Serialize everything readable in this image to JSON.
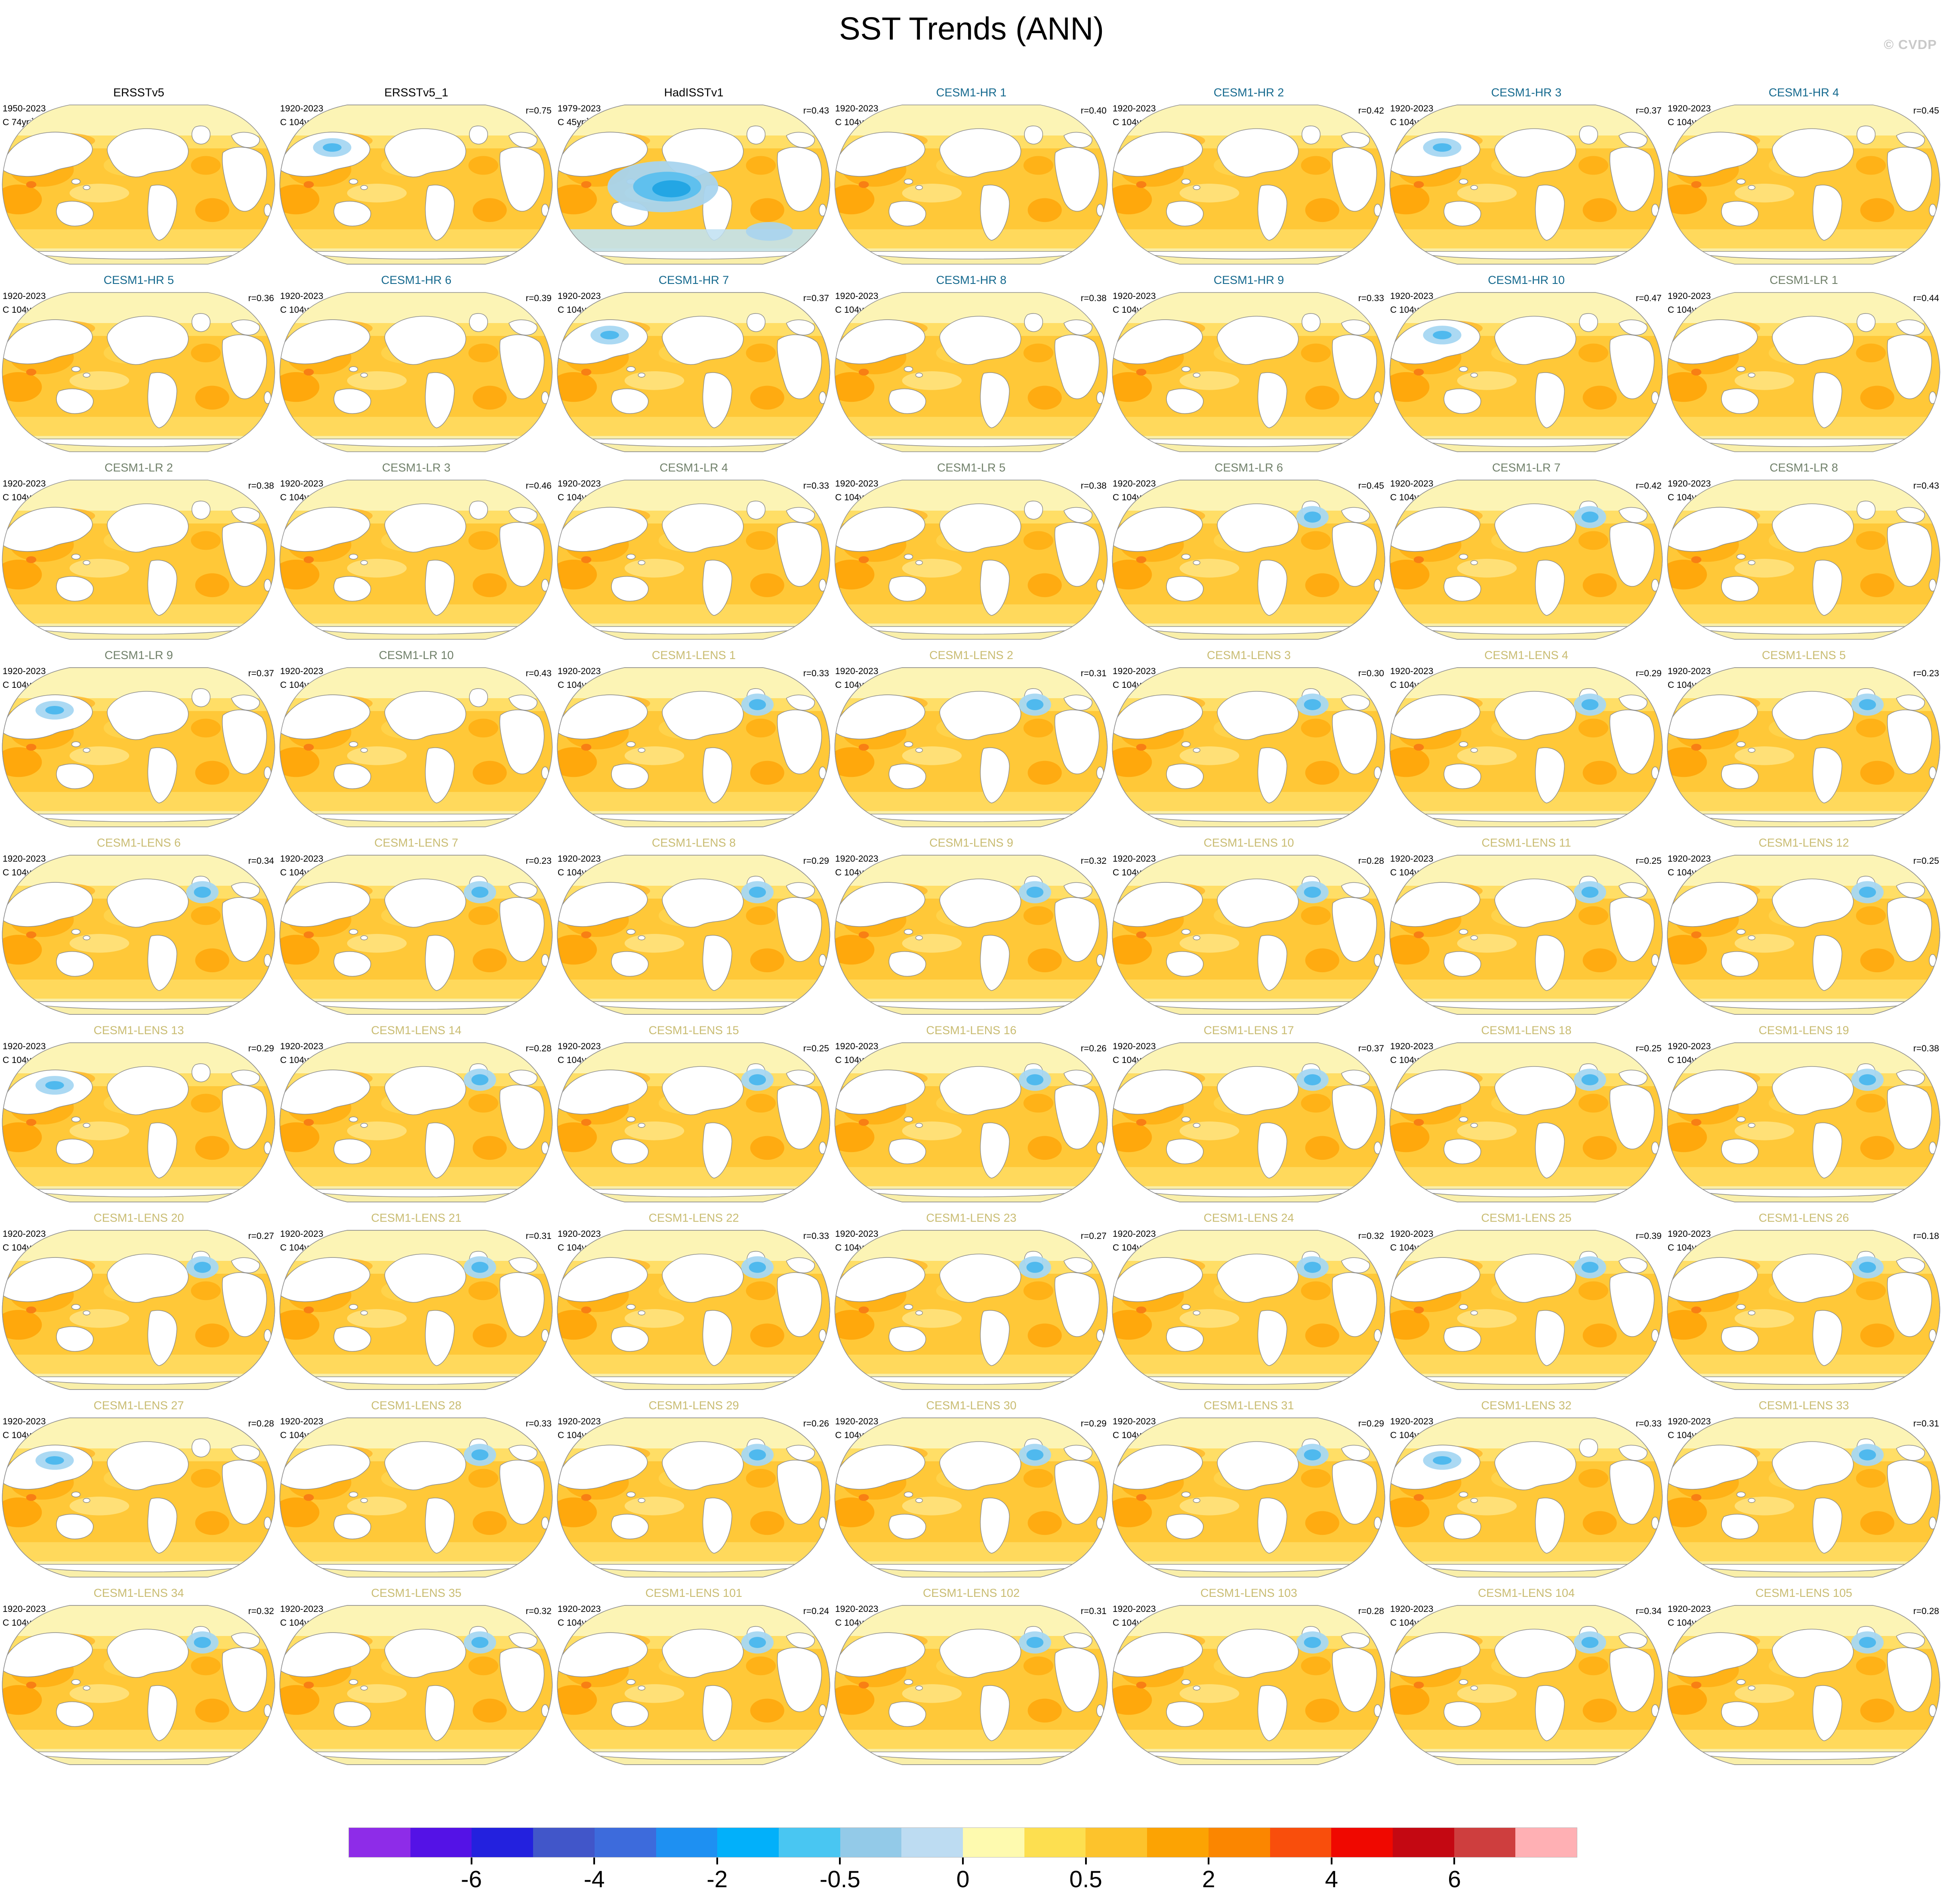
{
  "title": "SST Trends (ANN)",
  "watermark": "© CVDP",
  "chart_data": {
    "type": "heatmap",
    "description": "Grid of 63 global SST linear-trend maps (annual), observations and CESM1 ensemble members, with pattern correlation r vs observations",
    "title": "SST Trends (ANN)",
    "rows": 9,
    "cols": 7,
    "title_colors": {
      "obs": "#000000",
      "hr": "#15698E",
      "lr": "#70806A",
      "lens": "#C9BC72"
    },
    "panels": [
      {
        "title": "ERSSTv5",
        "group": "obs",
        "period": "1950-2023",
        "units": "C 74yr",
        "units_exp": "-1",
        "r_label": null,
        "map": "warm"
      },
      {
        "title": "ERSSTv5_1",
        "group": "obs",
        "period": "1920-2023",
        "units": "C 104yr",
        "units_exp": "-1",
        "r_label": "r=0.75",
        "map": "npac"
      },
      {
        "title": "HadISSTv1",
        "group": "obs",
        "period": "1979-2023",
        "units": "C 45yr",
        "units_exp": "-1",
        "r_label": "r=0.43",
        "map": "pac"
      },
      {
        "title": "CESM1-HR 1",
        "group": "hr",
        "period": "1920-2023",
        "units": "C 104yr",
        "units_exp": "-1",
        "r_label": "r=0.40",
        "map": "warm"
      },
      {
        "title": "CESM1-HR 2",
        "group": "hr",
        "period": "1920-2023",
        "units": "C 104yr",
        "units_exp": "-1",
        "r_label": "r=0.42",
        "map": "warm"
      },
      {
        "title": "CESM1-HR 3",
        "group": "hr",
        "period": "1920-2023",
        "units": "C 104yr",
        "units_exp": "-1",
        "r_label": "r=0.37",
        "map": "npac"
      },
      {
        "title": "CESM1-HR 4",
        "group": "hr",
        "period": "1920-2023",
        "units": "C 104yr",
        "units_exp": "-1",
        "r_label": "r=0.45",
        "map": "warm"
      },
      {
        "title": "CESM1-HR 5",
        "group": "hr",
        "period": "1920-2023",
        "units": "C 104yr",
        "units_exp": "-1",
        "r_label": "r=0.36",
        "map": "warm"
      },
      {
        "title": "CESM1-HR 6",
        "group": "hr",
        "period": "1920-2023",
        "units": "C 104yr",
        "units_exp": "-1",
        "r_label": "r=0.39",
        "map": "warm"
      },
      {
        "title": "CESM1-HR 7",
        "group": "hr",
        "period": "1920-2023",
        "units": "C 104yr",
        "units_exp": "-1",
        "r_label": "r=0.37",
        "map": "npac"
      },
      {
        "title": "CESM1-HR 8",
        "group": "hr",
        "period": "1920-2023",
        "units": "C 104yr",
        "units_exp": "-1",
        "r_label": "r=0.38",
        "map": "warm"
      },
      {
        "title": "CESM1-HR 9",
        "group": "hr",
        "period": "1920-2023",
        "units": "C 104yr",
        "units_exp": "-1",
        "r_label": "r=0.33",
        "map": "warm"
      },
      {
        "title": "CESM1-HR 10",
        "group": "hr",
        "period": "1920-2023",
        "units": "C 104yr",
        "units_exp": "-1",
        "r_label": "r=0.47",
        "map": "npac"
      },
      {
        "title": "CESM1-LR 1",
        "group": "lr",
        "period": "1920-2023",
        "units": "C 104yr",
        "units_exp": "-1",
        "r_label": "r=0.44",
        "map": "warm"
      },
      {
        "title": "CESM1-LR 2",
        "group": "lr",
        "period": "1920-2023",
        "units": "C 104yr",
        "units_exp": "-1",
        "r_label": "r=0.38",
        "map": "warm"
      },
      {
        "title": "CESM1-LR 3",
        "group": "lr",
        "period": "1920-2023",
        "units": "C 104yr",
        "units_exp": "-1",
        "r_label": "r=0.46",
        "map": "warm"
      },
      {
        "title": "CESM1-LR 4",
        "group": "lr",
        "period": "1920-2023",
        "units": "C 104yr",
        "units_exp": "-1",
        "r_label": "r=0.33",
        "map": "warm"
      },
      {
        "title": "CESM1-LR 5",
        "group": "lr",
        "period": "1920-2023",
        "units": "C 104yr",
        "units_exp": "-1",
        "r_label": "r=0.38",
        "map": "warm"
      },
      {
        "title": "CESM1-LR 6",
        "group": "lr",
        "period": "1920-2023",
        "units": "C 104yr",
        "units_exp": "-1",
        "r_label": "r=0.45",
        "map": "atl"
      },
      {
        "title": "CESM1-LR 7",
        "group": "lr",
        "period": "1920-2023",
        "units": "C 104yr",
        "units_exp": "-1",
        "r_label": "r=0.42",
        "map": "atl"
      },
      {
        "title": "CESM1-LR 8",
        "group": "lr",
        "period": "1920-2023",
        "units": "C 104yr",
        "units_exp": "-1",
        "r_label": "r=0.43",
        "map": "warm"
      },
      {
        "title": "CESM1-LR 9",
        "group": "lr",
        "period": "1920-2023",
        "units": "C 104yr",
        "units_exp": "-1",
        "r_label": "r=0.37",
        "map": "npac"
      },
      {
        "title": "CESM1-LR 10",
        "group": "lr",
        "period": "1920-2023",
        "units": "C 104yr",
        "units_exp": "-1",
        "r_label": "r=0.43",
        "map": "warm"
      },
      {
        "title": "CESM1-LENS 1",
        "group": "lens",
        "period": "1920-2023",
        "units": "C 104yr",
        "units_exp": "-1",
        "r_label": "r=0.33",
        "map": "atl"
      },
      {
        "title": "CESM1-LENS 2",
        "group": "lens",
        "period": "1920-2023",
        "units": "C 104yr",
        "units_exp": "-1",
        "r_label": "r=0.31",
        "map": "atl"
      },
      {
        "title": "CESM1-LENS 3",
        "group": "lens",
        "period": "1920-2023",
        "units": "C 104yr",
        "units_exp": "-1",
        "r_label": "r=0.30",
        "map": "atl"
      },
      {
        "title": "CESM1-LENS 4",
        "group": "lens",
        "period": "1920-2023",
        "units": "C 104yr",
        "units_exp": "-1",
        "r_label": "r=0.29",
        "map": "atl"
      },
      {
        "title": "CESM1-LENS 5",
        "group": "lens",
        "period": "1920-2023",
        "units": "C 104yr",
        "units_exp": "-1",
        "r_label": "r=0.23",
        "map": "atl"
      },
      {
        "title": "CESM1-LENS 6",
        "group": "lens",
        "period": "1920-2023",
        "units": "C 104yr",
        "units_exp": "-1",
        "r_label": "r=0.34",
        "map": "atl"
      },
      {
        "title": "CESM1-LENS 7",
        "group": "lens",
        "period": "1920-2023",
        "units": "C 104yr",
        "units_exp": "-1",
        "r_label": "r=0.23",
        "map": "atl"
      },
      {
        "title": "CESM1-LENS 8",
        "group": "lens",
        "period": "1920-2023",
        "units": "C 104yr",
        "units_exp": "-1",
        "r_label": "r=0.29",
        "map": "atl"
      },
      {
        "title": "CESM1-LENS 9",
        "group": "lens",
        "period": "1920-2023",
        "units": "C 104yr",
        "units_exp": "-1",
        "r_label": "r=0.32",
        "map": "atl"
      },
      {
        "title": "CESM1-LENS 10",
        "group": "lens",
        "period": "1920-2023",
        "units": "C 104yr",
        "units_exp": "-1",
        "r_label": "r=0.28",
        "map": "atl"
      },
      {
        "title": "CESM1-LENS 11",
        "group": "lens",
        "period": "1920-2023",
        "units": "C 104yr",
        "units_exp": "-1",
        "r_label": "r=0.25",
        "map": "atl"
      },
      {
        "title": "CESM1-LENS 12",
        "group": "lens",
        "period": "1920-2023",
        "units": "C 104yr",
        "units_exp": "-1",
        "r_label": "r=0.25",
        "map": "atl"
      },
      {
        "title": "CESM1-LENS 13",
        "group": "lens",
        "period": "1920-2023",
        "units": "C 104yr",
        "units_exp": "-1",
        "r_label": "r=0.29",
        "map": "npac"
      },
      {
        "title": "CESM1-LENS 14",
        "group": "lens",
        "period": "1920-2023",
        "units": "C 104yr",
        "units_exp": "-1",
        "r_label": "r=0.28",
        "map": "atl"
      },
      {
        "title": "CESM1-LENS 15",
        "group": "lens",
        "period": "1920-2023",
        "units": "C 104yr",
        "units_exp": "-1",
        "r_label": "r=0.25",
        "map": "atl"
      },
      {
        "title": "CESM1-LENS 16",
        "group": "lens",
        "period": "1920-2023",
        "units": "C 104yr",
        "units_exp": "-1",
        "r_label": "r=0.26",
        "map": "atl"
      },
      {
        "title": "CESM1-LENS 17",
        "group": "lens",
        "period": "1920-2023",
        "units": "C 104yr",
        "units_exp": "-1",
        "r_label": "r=0.37",
        "map": "atl"
      },
      {
        "title": "CESM1-LENS 18",
        "group": "lens",
        "period": "1920-2023",
        "units": "C 104yr",
        "units_exp": "-1",
        "r_label": "r=0.25",
        "map": "atl"
      },
      {
        "title": "CESM1-LENS 19",
        "group": "lens",
        "period": "1920-2023",
        "units": "C 104yr",
        "units_exp": "-1",
        "r_label": "r=0.38",
        "map": "atl"
      },
      {
        "title": "CESM1-LENS 20",
        "group": "lens",
        "period": "1920-2023",
        "units": "C 104yr",
        "units_exp": "-1",
        "r_label": "r=0.27",
        "map": "atl"
      },
      {
        "title": "CESM1-LENS 21",
        "group": "lens",
        "period": "1920-2023",
        "units": "C 104yr",
        "units_exp": "-1",
        "r_label": "r=0.31",
        "map": "atl"
      },
      {
        "title": "CESM1-LENS 22",
        "group": "lens",
        "period": "1920-2023",
        "units": "C 104yr",
        "units_exp": "-1",
        "r_label": "r=0.33",
        "map": "atl"
      },
      {
        "title": "CESM1-LENS 23",
        "group": "lens",
        "period": "1920-2023",
        "units": "C 104yr",
        "units_exp": "-1",
        "r_label": "r=0.27",
        "map": "atl"
      },
      {
        "title": "CESM1-LENS 24",
        "group": "lens",
        "period": "1920-2023",
        "units": "C 104yr",
        "units_exp": "-1",
        "r_label": "r=0.32",
        "map": "atl"
      },
      {
        "title": "CESM1-LENS 25",
        "group": "lens",
        "period": "1920-2023",
        "units": "C 104yr",
        "units_exp": "-1",
        "r_label": "r=0.39",
        "map": "atl"
      },
      {
        "title": "CESM1-LENS 26",
        "group": "lens",
        "period": "1920-2023",
        "units": "C 104yr",
        "units_exp": "-1",
        "r_label": "r=0.18",
        "map": "atl"
      },
      {
        "title": "CESM1-LENS 27",
        "group": "lens",
        "period": "1920-2023",
        "units": "C 104yr",
        "units_exp": "-1",
        "r_label": "r=0.28",
        "map": "npac"
      },
      {
        "title": "CESM1-LENS 28",
        "group": "lens",
        "period": "1920-2023",
        "units": "C 104yr",
        "units_exp": "-1",
        "r_label": "r=0.33",
        "map": "atl"
      },
      {
        "title": "CESM1-LENS 29",
        "group": "lens",
        "period": "1920-2023",
        "units": "C 104yr",
        "units_exp": "-1",
        "r_label": "r=0.26",
        "map": "atl"
      },
      {
        "title": "CESM1-LENS 30",
        "group": "lens",
        "period": "1920-2023",
        "units": "C 104yr",
        "units_exp": "-1",
        "r_label": "r=0.29",
        "map": "atl"
      },
      {
        "title": "CESM1-LENS 31",
        "group": "lens",
        "period": "1920-2023",
        "units": "C 104yr",
        "units_exp": "-1",
        "r_label": "r=0.29",
        "map": "atl"
      },
      {
        "title": "CESM1-LENS 32",
        "group": "lens",
        "period": "1920-2023",
        "units": "C 104yr",
        "units_exp": "-1",
        "r_label": "r=0.33",
        "map": "npac"
      },
      {
        "title": "CESM1-LENS 33",
        "group": "lens",
        "period": "1920-2023",
        "units": "C 104yr",
        "units_exp": "-1",
        "r_label": "r=0.31",
        "map": "atl"
      },
      {
        "title": "CESM1-LENS 34",
        "group": "lens",
        "period": "1920-2023",
        "units": "C 104yr",
        "units_exp": "-1",
        "r_label": "r=0.32",
        "map": "atl"
      },
      {
        "title": "CESM1-LENS 35",
        "group": "lens",
        "period": "1920-2023",
        "units": "C 104yr",
        "units_exp": "-1",
        "r_label": "r=0.32",
        "map": "atl"
      },
      {
        "title": "CESM1-LENS 101",
        "group": "lens",
        "period": "1920-2023",
        "units": "C 104yr",
        "units_exp": "-1",
        "r_label": "r=0.24",
        "map": "atl"
      },
      {
        "title": "CESM1-LENS 102",
        "group": "lens",
        "period": "1920-2023",
        "units": "C 104yr",
        "units_exp": "-1",
        "r_label": "r=0.31",
        "map": "atl"
      },
      {
        "title": "CESM1-LENS 103",
        "group": "lens",
        "period": "1920-2023",
        "units": "C 104yr",
        "units_exp": "-1",
        "r_label": "r=0.28",
        "map": "atl"
      },
      {
        "title": "CESM1-LENS 104",
        "group": "lens",
        "period": "1920-2023",
        "units": "C 104yr",
        "units_exp": "-1",
        "r_label": "r=0.34",
        "map": "atl"
      },
      {
        "title": "CESM1-LENS 105",
        "group": "lens",
        "period": "1920-2023",
        "units": "C 104yr",
        "units_exp": "-1",
        "r_label": "r=0.28",
        "map": "atl"
      }
    ],
    "colorbar": {
      "colors": [
        "#8E2CE8",
        "#5412E6",
        "#2321DE",
        "#4156C9",
        "#3D6BDC",
        "#1E90F2",
        "#02B0FA",
        "#49C6F2",
        "#93CAE8",
        "#BDDCF2",
        "#FEFAAF",
        "#FDDF50",
        "#FDC32C",
        "#FCA303",
        "#FB8600",
        "#F94E0C",
        "#F00800",
        "#C40812",
        "#CE3E3E",
        "#FFB0B4"
      ],
      "tick_labels": [
        "-6",
        "-4",
        "-2",
        "-0.5",
        "0",
        "0.5",
        "2",
        "4",
        "6"
      ],
      "labeled_boundaries": [
        2,
        4,
        6,
        8,
        10,
        12,
        14,
        16,
        18
      ]
    }
  }
}
